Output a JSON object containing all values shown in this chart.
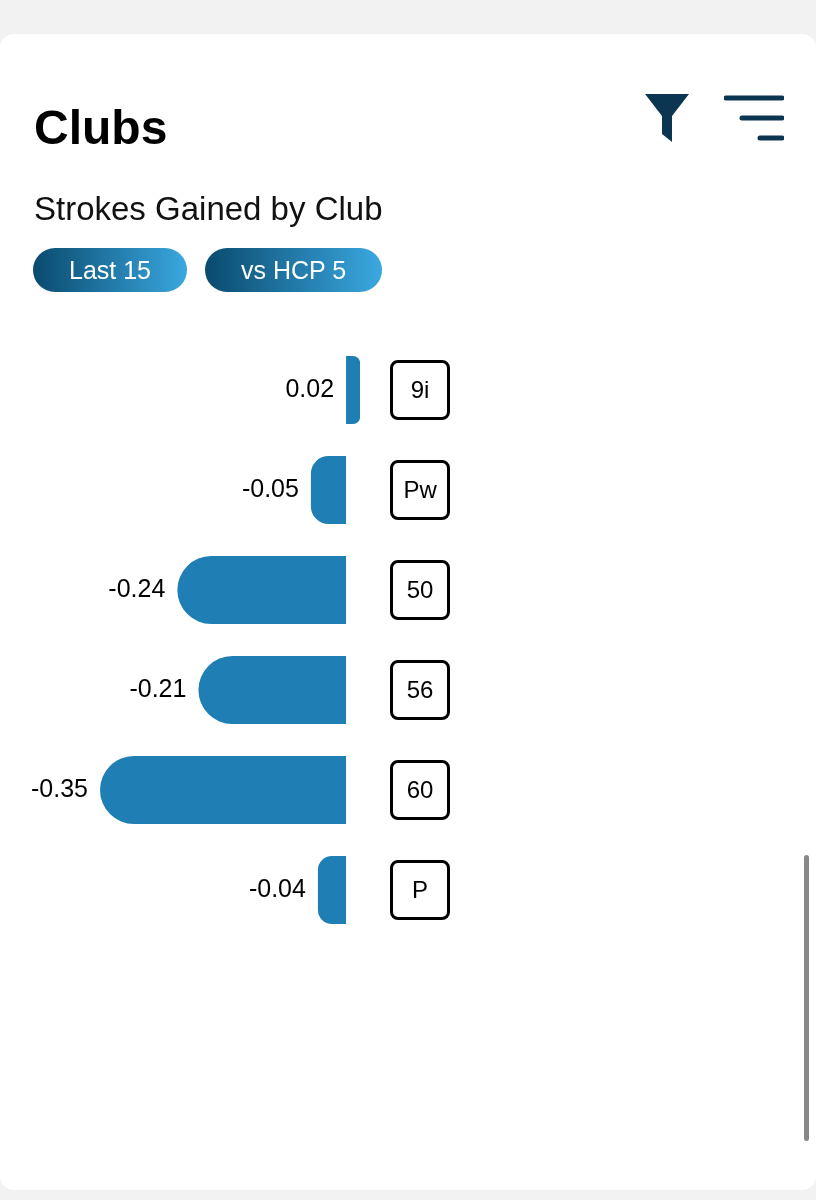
{
  "chart_data": {
    "type": "bar",
    "orientation": "horizontal",
    "title": "Clubs",
    "subtitle": "Strokes Gained by Club",
    "annotations": [
      "Last 15",
      "vs HCP 5"
    ],
    "categories": [
      "9i",
      "Pw",
      "50",
      "56",
      "60",
      "P"
    ],
    "values": [
      0.02,
      -0.05,
      -0.24,
      -0.21,
      -0.35,
      -0.04
    ],
    "color": "#1f7fb5",
    "data_labels": true,
    "legend": false,
    "grid": false,
    "tick_labels": "y"
  }
}
